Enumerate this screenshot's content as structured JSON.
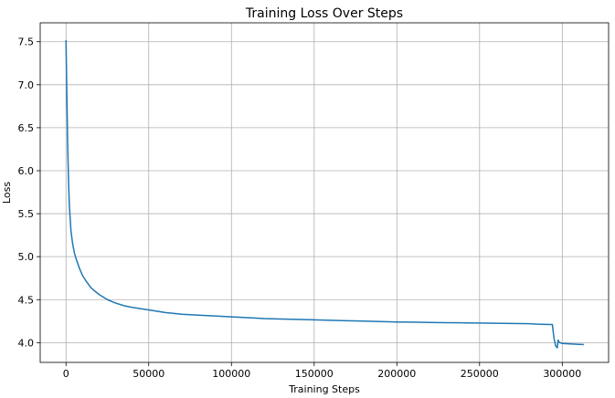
{
  "chart_data": {
    "type": "line",
    "title": "Training Loss Over Steps",
    "xlabel": "Training Steps",
    "ylabel": "Loss",
    "xlim": [
      -15600,
      328000
    ],
    "ylim": [
      3.77,
      7.72
    ],
    "xticks": [
      0,
      50000,
      100000,
      150000,
      200000,
      250000,
      300000
    ],
    "xtick_labels": [
      "0",
      "50000",
      "100000",
      "150000",
      "200000",
      "250000",
      "300000"
    ],
    "yticks": [
      4.0,
      4.5,
      5.0,
      5.5,
      6.0,
      6.5,
      7.0,
      7.5
    ],
    "ytick_labels": [
      "4.0",
      "4.5",
      "5.0",
      "5.5",
      "6.0",
      "6.5",
      "7.0",
      "7.5"
    ],
    "grid": true,
    "series": [
      {
        "color": "#1f77b4",
        "x": [
          0,
          500,
          1000,
          1500,
          2000,
          3000,
          4000,
          5000,
          6000,
          8000,
          10000,
          12000,
          15000,
          18000,
          20000,
          25000,
          30000,
          35000,
          40000,
          50000,
          60000,
          70000,
          80000,
          90000,
          100000,
          110000,
          120000,
          130000,
          140000,
          150000,
          160000,
          170000,
          180000,
          190000,
          200000,
          210000,
          220000,
          230000,
          240000,
          250000,
          260000,
          270000,
          280000,
          285000,
          290000,
          294000,
          295000,
          296000,
          297000,
          297500,
          298000,
          300000,
          305000,
          310000,
          313000
        ],
        "y": [
          7.52,
          6.9,
          6.3,
          5.9,
          5.6,
          5.3,
          5.15,
          5.05,
          4.98,
          4.87,
          4.78,
          4.72,
          4.64,
          4.59,
          4.56,
          4.5,
          4.46,
          4.43,
          4.41,
          4.38,
          4.35,
          4.33,
          4.32,
          4.31,
          4.3,
          4.29,
          4.28,
          4.275,
          4.27,
          4.265,
          4.26,
          4.255,
          4.25,
          4.245,
          4.24,
          4.238,
          4.235,
          4.232,
          4.23,
          4.228,
          4.225,
          4.222,
          4.22,
          4.215,
          4.212,
          4.21,
          4.05,
          3.96,
          3.94,
          4.03,
          4.005,
          3.99,
          3.985,
          3.98,
          3.977
        ]
      }
    ]
  }
}
